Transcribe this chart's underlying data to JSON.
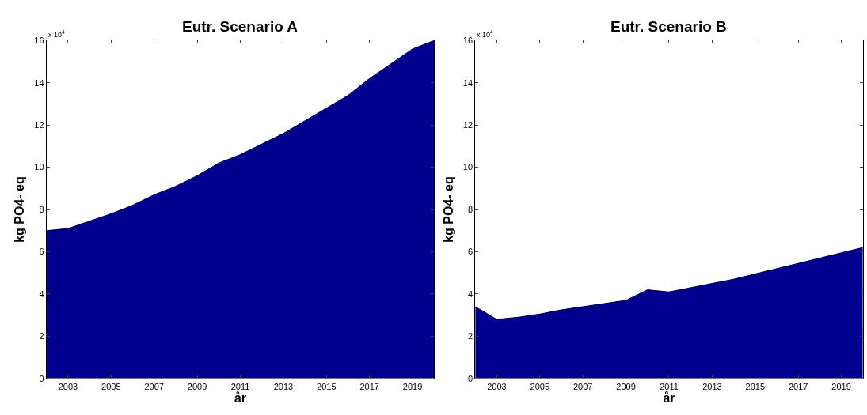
{
  "chart_data": [
    {
      "type": "area",
      "title": "Eutr. Scenario A",
      "xlabel": "år",
      "ylabel": "kg PO4- eq",
      "annotations": [
        "x 10$^{4}$"
      ],
      "color": "#00008f",
      "xlim": [
        2002,
        2020
      ],
      "xticks": [
        2003,
        2005,
        2007,
        2009,
        2011,
        2013,
        2015,
        2017,
        2019
      ],
      "ylim": [
        0,
        16
      ],
      "yticks": [
        0,
        2,
        4,
        6,
        8,
        10,
        12,
        14,
        16
      ],
      "x": [
        2002,
        2003,
        2004,
        2005,
        2006,
        2007,
        2008,
        2009,
        2010,
        2011,
        2012,
        2013,
        2014,
        2015,
        2016,
        2017,
        2018,
        2019,
        2020
      ],
      "values": [
        7.0,
        7.1,
        7.45,
        7.8,
        8.2,
        8.7,
        9.1,
        9.6,
        10.2,
        10.6,
        11.1,
        11.6,
        12.2,
        12.8,
        13.4,
        14.2,
        14.9,
        15.6,
        16.0
      ]
    },
    {
      "type": "area",
      "title": "Eutr. Scenario B",
      "xlabel": "år",
      "ylabel": "kg PO4- eq",
      "annotations": [
        "x 10$^{4}$"
      ],
      "color": "#00008f",
      "xlim": [
        2002,
        2020
      ],
      "xticks": [
        2003,
        2005,
        2007,
        2009,
        2011,
        2013,
        2015,
        2017,
        2019
      ],
      "ylim": [
        0,
        16
      ],
      "yticks": [
        0,
        2,
        4,
        6,
        8,
        10,
        12,
        14,
        16
      ],
      "x": [
        2002,
        2003,
        2004,
        2005,
        2006,
        2007,
        2008,
        2009,
        2010,
        2011,
        2012,
        2013,
        2014,
        2015,
        2016,
        2017,
        2018,
        2019,
        2020
      ],
      "values": [
        3.4,
        2.8,
        2.9,
        3.05,
        3.25,
        3.4,
        3.55,
        3.7,
        4.2,
        4.1,
        4.3,
        4.5,
        4.7,
        4.95,
        5.2,
        5.45,
        5.7,
        5.95,
        6.2
      ]
    }
  ]
}
